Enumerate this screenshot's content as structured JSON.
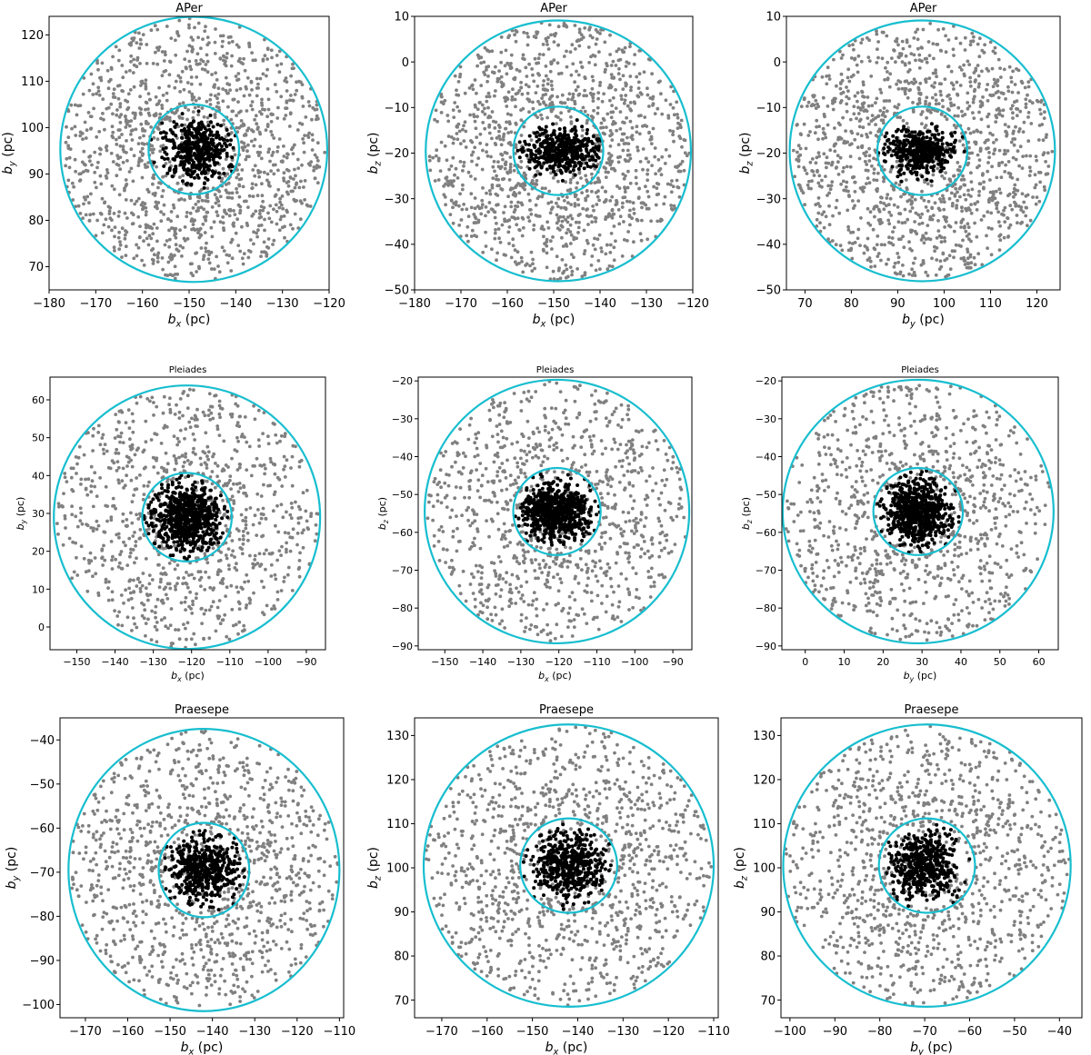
{
  "figure": {
    "colors": {
      "field": "#808080",
      "member": "#000000",
      "circle": "#17BECF"
    }
  },
  "chart_data": [
    {
      "type": "scatter",
      "title": "APer",
      "xlabel": "b_x (pc)",
      "ylabel": "b_y (pc)",
      "xlim": [
        -180,
        -120
      ],
      "ylim": [
        65,
        124
      ],
      "xticks": [
        -180,
        -170,
        -160,
        -150,
        -140,
        -130,
        -120
      ],
      "yticks": [
        70,
        80,
        90,
        100,
        110,
        120
      ],
      "circles": [
        {
          "cx": -149,
          "cy": 95.3,
          "r": 9.7
        },
        {
          "cx": -149,
          "cy": 95.3,
          "r": 28.6
        }
      ],
      "members": {
        "cx": -148,
        "cy": 95.3,
        "spread": [
          3.6,
          3.6
        ],
        "count": 420
      },
      "field": {
        "count": 1300
      }
    },
    {
      "type": "scatter",
      "title": "APer",
      "xlabel": "b_x (pc)",
      "ylabel": "b_z (pc)",
      "xlim": [
        -180,
        -120
      ],
      "ylim": [
        -50,
        10
      ],
      "xticks": [
        -180,
        -170,
        -160,
        -150,
        -140,
        -130,
        -120
      ],
      "yticks": [
        -50,
        -40,
        -30,
        -20,
        -10,
        0,
        10
      ],
      "circles": [
        {
          "cx": -149,
          "cy": -19.5,
          "r": 9.7
        },
        {
          "cx": -149,
          "cy": -19.5,
          "r": 28.6
        }
      ],
      "members": {
        "cx": -148,
        "cy": -19.5,
        "spread": [
          4.0,
          2.4
        ],
        "count": 420
      },
      "field": {
        "count": 1300
      }
    },
    {
      "type": "scatter",
      "title": "APer",
      "xlabel": "b_y (pc)",
      "ylabel": "b_z (pc)",
      "xlim": [
        66,
        125
      ],
      "ylim": [
        -50,
        10
      ],
      "xticks": [
        70,
        80,
        90,
        100,
        110,
        120
      ],
      "yticks": [
        -50,
        -40,
        -30,
        -20,
        -10,
        0,
        10
      ],
      "circles": [
        {
          "cx": 95.3,
          "cy": -19.5,
          "r": 9.7
        },
        {
          "cx": 95.3,
          "cy": -19.5,
          "r": 28.6
        }
      ],
      "members": {
        "cx": 95,
        "cy": -19.5,
        "spread": [
          3.6,
          2.4
        ],
        "count": 420
      },
      "field": {
        "count": 1300
      }
    },
    {
      "type": "scatter",
      "title": "Pleiades",
      "xlabel": "b_x (pc)",
      "ylabel": "b_y (pc)",
      "xlim": [
        -157,
        -85
      ],
      "ylim": [
        -6,
        66
      ],
      "xticks": [
        -150,
        -140,
        -130,
        -120,
        -110,
        -100,
        -90
      ],
      "yticks": [
        0,
        10,
        20,
        30,
        40,
        50,
        60
      ],
      "circles": [
        {
          "cx": -121.2,
          "cy": 29,
          "r": 11.7
        },
        {
          "cx": -121.2,
          "cy": 29,
          "r": 34.8
        }
      ],
      "members": {
        "cx": -121.2,
        "cy": 29,
        "spread": [
          4.3,
          4.3
        ],
        "count": 700
      },
      "field": {
        "count": 950
      }
    },
    {
      "type": "scatter",
      "title": "Pleiades",
      "xlabel": "b_x (pc)",
      "ylabel": "b_z (pc)",
      "xlim": [
        -157,
        -85
      ],
      "ylim": [
        -91,
        -19
      ],
      "xticks": [
        -150,
        -140,
        -130,
        -120,
        -110,
        -100,
        -90
      ],
      "yticks": [
        -90,
        -80,
        -70,
        -60,
        -50,
        -40,
        -30,
        -20
      ],
      "circles": [
        {
          "cx": -120.5,
          "cy": -54.5,
          "r": 11.5
        },
        {
          "cx": -120.5,
          "cy": -54.5,
          "r": 34.8
        }
      ],
      "members": {
        "cx": -121,
        "cy": -54.5,
        "spread": [
          4.5,
          3.5
        ],
        "count": 700
      },
      "field": {
        "count": 950
      }
    },
    {
      "type": "scatter",
      "title": "Pleiades",
      "xlabel": "b_y (pc)",
      "ylabel": "b_z (pc)",
      "xlim": [
        -6,
        65
      ],
      "ylim": [
        -91,
        -19
      ],
      "xticks": [
        0,
        10,
        20,
        30,
        40,
        50,
        60
      ],
      "yticks": [
        -90,
        -80,
        -70,
        -60,
        -50,
        -40,
        -30,
        -20
      ],
      "circles": [
        {
          "cx": 29,
          "cy": -54.5,
          "r": 11.5
        },
        {
          "cx": 29,
          "cy": -54.5,
          "r": 34.8
        }
      ],
      "members": {
        "cx": 29,
        "cy": -54.5,
        "spread": [
          4.0,
          4.0
        ],
        "count": 700
      },
      "field": {
        "count": 950
      }
    },
    {
      "type": "scatter",
      "title": "Praesepe",
      "xlabel": "b_x (pc)",
      "ylabel": "b_y (pc)",
      "xlim": [
        -176,
        -109
      ],
      "ylim": [
        -103,
        -35
      ],
      "xticks": [
        -170,
        -160,
        -150,
        -140,
        -130,
        -120,
        -110
      ],
      "yticks": [
        -100,
        -90,
        -80,
        -70,
        -60,
        -50,
        -40
      ],
      "circles": [
        {
          "cx": -142,
          "cy": -69.5,
          "r": 10.7
        },
        {
          "cx": -142,
          "cy": -69.5,
          "r": 32
        }
      ],
      "members": {
        "cx": -142,
        "cy": -69.5,
        "spread": [
          3.8,
          3.4
        ],
        "count": 500
      },
      "field": {
        "count": 1100
      }
    },
    {
      "type": "scatter",
      "title": "Praesepe",
      "xlabel": "b_x (pc)",
      "ylabel": "b_z (pc)",
      "xlim": [
        -176,
        -109
      ],
      "ylim": [
        66,
        134
      ],
      "xticks": [
        -170,
        -160,
        -150,
        -140,
        -130,
        -120,
        -110
      ],
      "yticks": [
        70,
        80,
        90,
        100,
        110,
        120,
        130
      ],
      "circles": [
        {
          "cx": -142,
          "cy": 100.5,
          "r": 10.7
        },
        {
          "cx": -142,
          "cy": 100.5,
          "r": 32
        }
      ],
      "members": {
        "cx": -142,
        "cy": 100.5,
        "spread": [
          4.0,
          3.6
        ],
        "count": 500
      },
      "field": {
        "count": 1100
      }
    },
    {
      "type": "scatter",
      "title": "Praesepe",
      "xlabel": "b_y (pc)",
      "ylabel": "b_z (pc)",
      "xlim": [
        -102,
        -35
      ],
      "ylim": [
        66,
        134
      ],
      "xticks": [
        -100,
        -90,
        -80,
        -70,
        -60,
        -50,
        -40
      ],
      "yticks": [
        70,
        80,
        90,
        100,
        110,
        120,
        130
      ],
      "circles": [
        {
          "cx": -69.5,
          "cy": 100.5,
          "r": 10.7
        },
        {
          "cx": -69.5,
          "cy": 100.5,
          "r": 32
        }
      ],
      "members": {
        "cx": -70,
        "cy": 100.5,
        "spread": [
          3.4,
          3.6
        ],
        "count": 500
      },
      "field": {
        "count": 1100
      }
    }
  ]
}
